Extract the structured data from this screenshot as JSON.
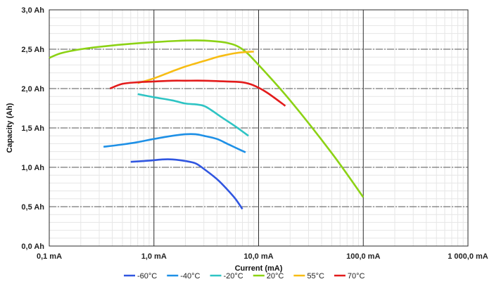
{
  "chart_data": {
    "type": "line",
    "xlabel": "Current (mA)",
    "ylabel": "Capacity (Ah)",
    "x_scale": "log",
    "xlim": [
      0.1,
      1000
    ],
    "ylim": [
      0,
      3
    ],
    "x_ticks": [
      {
        "value": 0.1,
        "label": "0,1 mA"
      },
      {
        "value": 1,
        "label": "1,0 mA"
      },
      {
        "value": 10,
        "label": "10,0 mA"
      },
      {
        "value": 100,
        "label": "100,0 mA"
      },
      {
        "value": 1000,
        "label": "1 000,0 mA"
      }
    ],
    "y_ticks": [
      {
        "value": 0,
        "label": "0,0 Ah"
      },
      {
        "value": 0.5,
        "label": "0,5 Ah"
      },
      {
        "value": 1.0,
        "label": "1,0 Ah"
      },
      {
        "value": 1.5,
        "label": "1,5 Ah"
      },
      {
        "value": 2.0,
        "label": "2,0 Ah"
      },
      {
        "value": 2.5,
        "label": "2,5 Ah"
      },
      {
        "value": 3.0,
        "label": "3,0 Ah"
      }
    ],
    "grid": true,
    "legend_position": "bottom",
    "series": [
      {
        "name": "-60°C",
        "color": "#3056e0",
        "x": [
          0.6,
          0.8,
          1.0,
          1.2,
          1.5,
          2.0,
          2.5,
          3.0,
          4.0,
          5.0,
          6.0,
          7.0
        ],
        "y": [
          1.07,
          1.08,
          1.09,
          1.1,
          1.1,
          1.08,
          1.05,
          0.98,
          0.85,
          0.72,
          0.6,
          0.47
        ]
      },
      {
        "name": "-40°C",
        "color": "#1e90e6",
        "x": [
          0.33,
          0.5,
          0.7,
          1.0,
          1.5,
          2.0,
          2.5,
          3.0,
          4.0,
          5.0,
          6.0,
          7.5
        ],
        "y": [
          1.26,
          1.29,
          1.32,
          1.36,
          1.4,
          1.42,
          1.42,
          1.4,
          1.36,
          1.3,
          1.25,
          1.19
        ]
      },
      {
        "name": "-20°C",
        "color": "#2ec4c4",
        "x": [
          0.7,
          1.0,
          1.5,
          2.0,
          2.5,
          3.0,
          3.5,
          4.5,
          6.0,
          8.0
        ],
        "y": [
          1.93,
          1.89,
          1.85,
          1.81,
          1.8,
          1.78,
          1.73,
          1.63,
          1.52,
          1.4
        ]
      },
      {
        "name": "20°C",
        "color": "#8cd214",
        "x": [
          0.1,
          0.13,
          0.2,
          0.3,
          0.5,
          1.0,
          2.0,
          3.0,
          5.0,
          7.0,
          10.0,
          20.0,
          50.0,
          100.0
        ],
        "y": [
          2.39,
          2.45,
          2.5,
          2.53,
          2.56,
          2.59,
          2.61,
          2.61,
          2.58,
          2.5,
          2.3,
          1.85,
          1.18,
          0.62
        ]
      },
      {
        "name": "55°C",
        "color": "#f7bd14",
        "x": [
          0.7,
          1.0,
          1.5,
          2.0,
          3.0,
          4.0,
          5.0,
          6.0,
          7.0,
          9.0
        ],
        "y": [
          2.07,
          2.13,
          2.22,
          2.28,
          2.35,
          2.4,
          2.43,
          2.45,
          2.46,
          2.47
        ]
      },
      {
        "name": "70°C",
        "color": "#e31b1b",
        "x": [
          0.38,
          0.5,
          0.7,
          1.0,
          1.5,
          2.0,
          3.0,
          5.0,
          7.0,
          9.0,
          12.0,
          18.0
        ],
        "y": [
          2.0,
          2.06,
          2.08,
          2.09,
          2.1,
          2.1,
          2.1,
          2.09,
          2.08,
          2.04,
          1.95,
          1.78
        ]
      }
    ]
  }
}
